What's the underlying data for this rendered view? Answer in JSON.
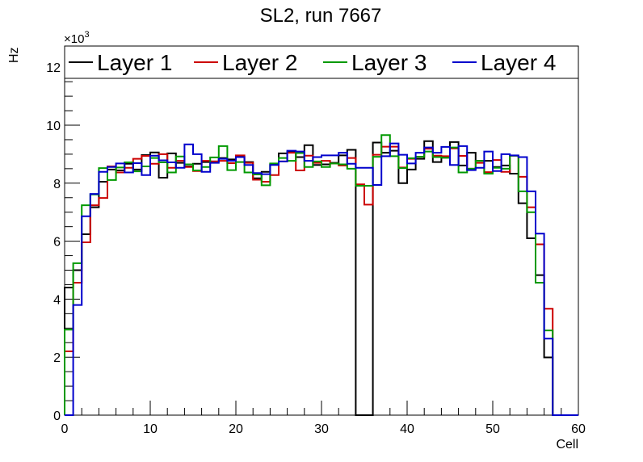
{
  "chart_data": {
    "type": "step-histogram",
    "title": "SL2, run 7667",
    "xlabel": "Cell",
    "ylabel": "Hz",
    "y_exponent_label": "×10",
    "y_exponent_power": "3",
    "y_unit_scale": 1000,
    "xlim": [
      0,
      60
    ],
    "ylim": [
      0,
      12.73
    ],
    "x_ticks": [
      "0",
      "10",
      "20",
      "30",
      "40",
      "50",
      "60"
    ],
    "y_ticks": [
      "0",
      "2",
      "4",
      "6",
      "8",
      "10",
      "12"
    ],
    "grid": false,
    "legend_position": "top, full width",
    "bin_width": 1,
    "series": [
      {
        "name": "Layer 1",
        "color": "#000000",
        "values": [
          4.4,
          5.0,
          6.24,
          7.17,
          8.05,
          8.47,
          8.44,
          8.67,
          8.47,
          8.97,
          9.06,
          8.19,
          9.03,
          8.7,
          8.58,
          8.67,
          8.73,
          8.75,
          8.87,
          8.82,
          8.92,
          8.73,
          8.17,
          8.39,
          8.65,
          9.03,
          9.08,
          8.9,
          9.31,
          8.63,
          8.65,
          8.7,
          8.96,
          9.15,
          0,
          0,
          9.4,
          9.05,
          9.12,
          8.0,
          8.47,
          8.84,
          9.45,
          8.73,
          8.88,
          9.42,
          8.61,
          9.05,
          8.77,
          8.77,
          8.56,
          8.61,
          8.33,
          7.31,
          6.1,
          4.83,
          1.99,
          0,
          0,
          0
        ]
      },
      {
        "name": "Layer 2",
        "color": "#cc0000",
        "values": [
          2.2,
          4.57,
          5.96,
          7.24,
          7.49,
          8.58,
          8.37,
          8.53,
          8.84,
          8.94,
          8.67,
          9.0,
          8.53,
          8.77,
          8.56,
          8.42,
          8.77,
          8.75,
          8.77,
          8.69,
          8.96,
          8.7,
          8.12,
          8.05,
          8.28,
          8.75,
          9.05,
          8.44,
          8.95,
          8.7,
          8.77,
          8.68,
          8.61,
          8.87,
          7.96,
          7.26,
          8.98,
          9.26,
          9.26,
          8.54,
          8.84,
          8.91,
          9.19,
          8.95,
          8.93,
          9.2,
          8.94,
          8.5,
          8.7,
          8.38,
          8.8,
          8.39,
          8.95,
          8.22,
          7.17,
          5.89,
          3.67,
          0,
          0,
          0
        ]
      },
      {
        "name": "Layer 3",
        "color": "#009900",
        "values": [
          2.95,
          5.24,
          7.24,
          7.61,
          8.52,
          8.11,
          8.54,
          8.72,
          8.41,
          8.58,
          8.87,
          8.72,
          8.37,
          8.92,
          8.65,
          8.44,
          8.56,
          8.89,
          9.28,
          8.45,
          8.73,
          8.37,
          8.3,
          7.93,
          8.68,
          8.87,
          8.77,
          9.04,
          8.56,
          8.75,
          8.56,
          8.68,
          8.65,
          8.5,
          7.91,
          7.91,
          8.91,
          9.66,
          8.93,
          8.52,
          8.86,
          8.91,
          9.09,
          8.9,
          8.88,
          9.23,
          8.37,
          8.5,
          8.77,
          8.33,
          8.53,
          8.5,
          8.95,
          7.72,
          7.0,
          4.57,
          2.92,
          0,
          0,
          0
        ]
      },
      {
        "name": "Layer 4",
        "color": "#0000cc",
        "values": [
          0,
          3.8,
          6.86,
          7.63,
          8.39,
          8.56,
          8.68,
          8.37,
          8.69,
          8.28,
          8.95,
          8.79,
          8.72,
          8.53,
          9.34,
          9.0,
          8.39,
          8.7,
          8.84,
          8.77,
          8.9,
          8.63,
          8.35,
          8.31,
          8.63,
          8.75,
          9.12,
          9.09,
          8.77,
          8.9,
          8.96,
          8.96,
          9.05,
          8.67,
          8.53,
          8.53,
          7.94,
          8.93,
          9.37,
          8.98,
          8.68,
          9.05,
          9.23,
          9.05,
          9.25,
          8.63,
          9.28,
          8.45,
          8.53,
          9.09,
          8.42,
          9.0,
          8.96,
          8.9,
          7.72,
          6.26,
          2.64,
          0,
          0,
          0
        ]
      }
    ]
  }
}
